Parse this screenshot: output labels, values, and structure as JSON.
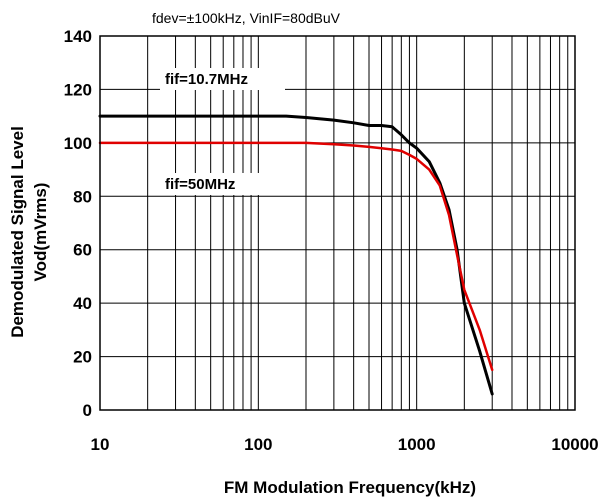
{
  "chart_data": {
    "type": "line",
    "title": "",
    "subtitle": "fdev=±100kHz, VinIF=80dBuV",
    "xlabel": "FM Modulation Frequency(kHz)",
    "ylabel_line1": "Demodulated Signal Level",
    "ylabel_line2": "Vod(mVrms)",
    "xscale": "log",
    "xlim": [
      10,
      10000
    ],
    "ylim": [
      0,
      140
    ],
    "xticks": [
      10,
      100,
      1000,
      10000
    ],
    "xtick_labels": [
      "10",
      "100",
      "1000",
      "10000"
    ],
    "yticks": [
      0,
      20,
      40,
      60,
      80,
      100,
      120,
      140
    ],
    "ytick_labels": [
      "0",
      "20",
      "40",
      "60",
      "80",
      "100",
      "120",
      "140"
    ],
    "grid": true,
    "series": [
      {
        "name": "fif=10.7MHz",
        "color": "#000000",
        "x": [
          10,
          20,
          50,
          100,
          150,
          200,
          300,
          400,
          500,
          600,
          700,
          800,
          900,
          1000,
          1200,
          1400,
          1600,
          1800,
          2000,
          2500,
          3000
        ],
        "y": [
          110,
          110,
          110,
          110,
          110,
          109.5,
          108.5,
          107.5,
          106.5,
          106.5,
          106,
          103,
          100,
          98,
          93,
          85,
          75,
          60,
          40,
          22,
          6
        ]
      },
      {
        "name": "fif=50MHz",
        "color": "#e00000",
        "x": [
          10,
          20,
          50,
          100,
          200,
          300,
          400,
          500,
          600,
          700,
          800,
          900,
          1000,
          1200,
          1400,
          1600,
          1800,
          2000,
          2500,
          3000
        ],
        "y": [
          100,
          100,
          100,
          100,
          100,
          99.5,
          99,
          98.5,
          98,
          97.5,
          97,
          95.5,
          94,
          90,
          84,
          73,
          58,
          45,
          30,
          15
        ]
      }
    ]
  }
}
